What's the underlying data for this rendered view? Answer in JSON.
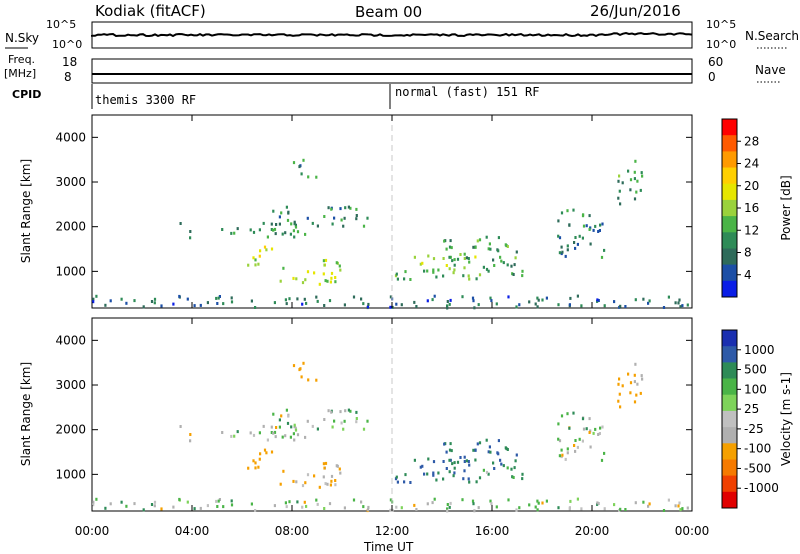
{
  "header": {
    "station": "Kodiak (fitACF)",
    "beam": "Beam 00",
    "date": "26/Jun/2016"
  },
  "panels": {
    "nsky_label": "N.Sky",
    "nsky_ticks": [
      "10^5",
      "10^0"
    ],
    "nsearch_label": "N.Search",
    "nsearch_ticks": [
      "10^5",
      "10^0"
    ],
    "freq_label": "Freq.",
    "freq_unit": "[MHz]",
    "freq_ticks": [
      "18",
      "8"
    ],
    "nave_label": "Nave",
    "nave_ticks": [
      "60",
      "0"
    ],
    "cpid_label": "CPID",
    "cpid_segments": [
      {
        "label": "themis 3300 RF",
        "start_hour": 0
      },
      {
        "label": "normal (fast) 151 RF",
        "start_hour": 12
      }
    ]
  },
  "axes": {
    "ylabel": "Slant Range [km]",
    "xlabel": "Time UT",
    "y_ticks": [
      1000,
      2000,
      3000,
      4000
    ],
    "x_ticks": [
      "00:00",
      "04:00",
      "08:00",
      "12:00",
      "16:00",
      "20:00",
      "00:00"
    ]
  },
  "power_colorbar": {
    "label": "Power [dB]",
    "ticks": [
      "28",
      "24",
      "20",
      "16",
      "12",
      "8",
      "4"
    ],
    "colors": [
      "#ff0000",
      "#ff5a00",
      "#ff9a00",
      "#ffcf00",
      "#e6e600",
      "#9ad23c",
      "#4ab447",
      "#2e8b57",
      "#2e6b5a",
      "#1c4fa6",
      "#0a1ee6"
    ]
  },
  "velocity_colorbar": {
    "label": "Velocity [m s-1]",
    "ticks": [
      "1000",
      "500",
      "100",
      "25",
      "-25",
      "-100",
      "-500",
      "-1000"
    ],
    "colors": [
      "#1a2fb0",
      "#2e5aa8",
      "#2e8b57",
      "#4ab447",
      "#7ed35a",
      "#c0c0c0",
      "#b0b0b0",
      "#f5a000",
      "#f57a00",
      "#f04000",
      "#e00000"
    ]
  },
  "chart_data": {
    "type": "heatmap",
    "x_range_hours": [
      0,
      24
    ],
    "y_range_km": [
      180,
      4500
    ],
    "scatter_regions": [
      {
        "t0": 3.5,
        "t1": 8.5,
        "r0": 1750,
        "r1": 2100,
        "power": 10,
        "vel": 0
      },
      {
        "t0": 7.0,
        "t1": 11.0,
        "r0": 2000,
        "r1": 2450,
        "power": 9,
        "vel": 0
      },
      {
        "t0": 6.0,
        "t1": 7.2,
        "r0": 1100,
        "r1": 1600,
        "power": 18,
        "vel": -200
      },
      {
        "t0": 7.5,
        "t1": 10.0,
        "r0": 700,
        "r1": 1300,
        "power": 16,
        "vel": -100
      },
      {
        "t0": 12.0,
        "t1": 15.5,
        "r0": 800,
        "r1": 1400,
        "power": 14,
        "vel": 300
      },
      {
        "t0": 14.0,
        "t1": 17.0,
        "r0": 1100,
        "r1": 1800,
        "power": 10,
        "vel": 300
      },
      {
        "t0": 15.5,
        "t1": 17.5,
        "r0": 900,
        "r1": 1200,
        "power": 9,
        "vel": 100
      },
      {
        "t0": 18.5,
        "t1": 20.5,
        "r0": 1300,
        "r1": 2400,
        "power": 8,
        "vel": 0
      },
      {
        "t0": 21.0,
        "t1": 22.0,
        "r0": 2400,
        "r1": 3500,
        "power": 10,
        "vel": -100
      },
      {
        "t0": 8.0,
        "t1": 9.0,
        "r0": 3100,
        "r1": 3500,
        "power": 8,
        "vel": -200
      },
      {
        "t0": 0.0,
        "t1": 24.0,
        "r0": 180,
        "r1": 450,
        "power": 6,
        "vel": 0
      }
    ]
  }
}
